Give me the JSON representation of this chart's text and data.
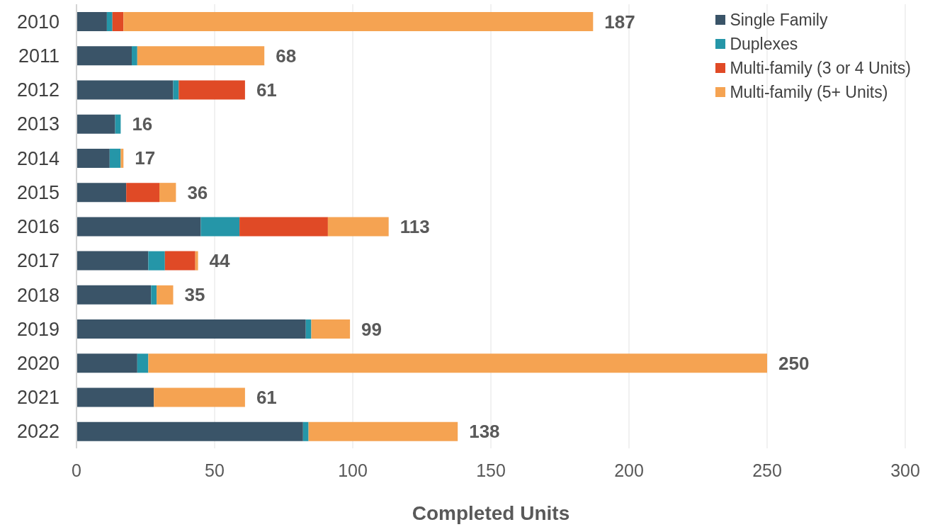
{
  "chart_data": {
    "type": "bar",
    "orientation": "horizontal",
    "stacked": true,
    "categories": [
      "2010",
      "2011",
      "2012",
      "2013",
      "2014",
      "2015",
      "2016",
      "2017",
      "2018",
      "2019",
      "2020",
      "2021",
      "2022"
    ],
    "series": [
      {
        "name": "Single Family",
        "color": "#3a5468",
        "values": [
          11,
          20,
          35,
          14,
          12,
          18,
          45,
          26,
          27,
          83,
          22,
          28,
          82
        ]
      },
      {
        "name": "Duplexes",
        "color": "#2596a8",
        "values": [
          2,
          2,
          2,
          2,
          4,
          0,
          14,
          6,
          2,
          2,
          4,
          0,
          2
        ]
      },
      {
        "name": "Multi-family (3 or 4 Units)",
        "color": "#e04a26",
        "values": [
          4,
          0,
          24,
          0,
          0,
          12,
          32,
          11,
          0,
          0,
          0,
          0,
          0
        ]
      },
      {
        "name": "Multi-family (5+ Units)",
        "color": "#f5a352",
        "values": [
          170,
          46,
          0,
          0,
          1,
          6,
          22,
          1,
          6,
          14,
          224,
          33,
          54
        ]
      }
    ],
    "totals": [
      "187",
      "68",
      "61",
      "16",
      "17",
      "36",
      "113",
      "44",
      "35",
      "99",
      "250",
      "61",
      "138"
    ],
    "xlabel": "Completed Units",
    "xlim": [
      0,
      300
    ],
    "xticks": [
      0,
      50,
      100,
      150,
      200,
      250,
      300
    ],
    "grid": "x",
    "legend": "top right"
  }
}
